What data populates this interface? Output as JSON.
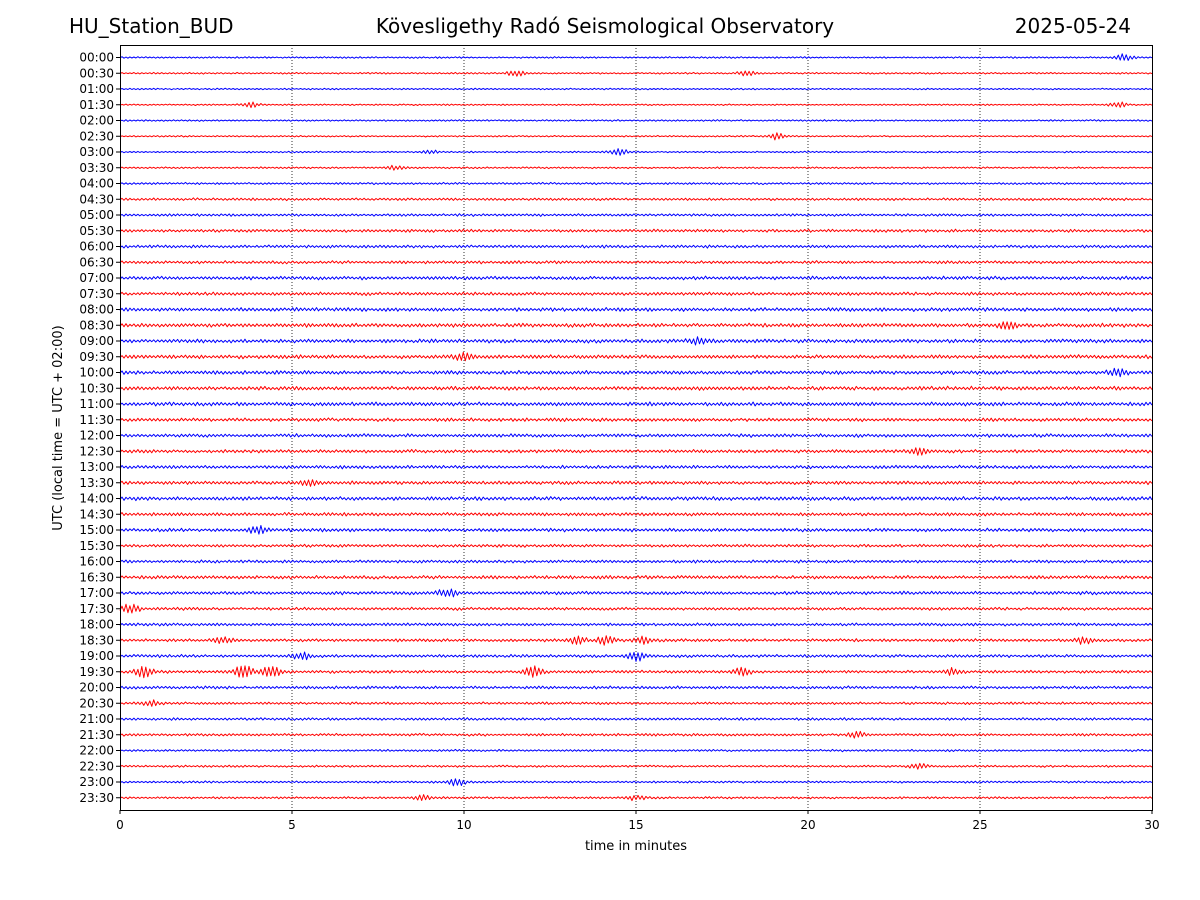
{
  "header": {
    "station": "HU_Station_BUD",
    "title": "Kövesligethy Radó Seismological Observatory",
    "date": "2025-05-24"
  },
  "chart_data": {
    "type": "line",
    "subtype": "helicorder",
    "xlabel": "time in minutes",
    "ylabel": "UTC (local time = UTC + 02:00)",
    "xlim": [
      0,
      30
    ],
    "xticks": [
      0,
      5,
      10,
      15,
      20,
      25,
      30
    ],
    "vertical_gridlines": [
      5,
      10,
      15,
      20,
      25
    ],
    "grid_style": "dotted",
    "row_labels": [
      "00:00",
      "00:30",
      "01:00",
      "01:30",
      "02:00",
      "02:30",
      "03:00",
      "03:30",
      "04:00",
      "04:30",
      "05:00",
      "05:30",
      "06:00",
      "06:30",
      "07:00",
      "07:30",
      "08:00",
      "08:30",
      "09:00",
      "09:30",
      "10:00",
      "10:30",
      "11:00",
      "11:30",
      "12:00",
      "12:30",
      "13:00",
      "13:30",
      "14:00",
      "14:30",
      "15:00",
      "15:30",
      "16:00",
      "16:30",
      "17:00",
      "17:30",
      "18:00",
      "18:30",
      "19:00",
      "19:30",
      "20:00",
      "20:30",
      "21:00",
      "21:30",
      "22:00",
      "22:30",
      "23:00",
      "23:30"
    ],
    "colors": {
      "even_rows": "#0000ff",
      "odd_rows": "#ff0000"
    },
    "noise_levels": [
      0.2,
      0.2,
      0.18,
      0.18,
      0.2,
      0.18,
      0.2,
      0.2,
      0.25,
      0.3,
      0.3,
      0.35,
      0.35,
      0.35,
      0.4,
      0.4,
      0.45,
      0.45,
      0.45,
      0.45,
      0.45,
      0.45,
      0.45,
      0.4,
      0.4,
      0.4,
      0.4,
      0.4,
      0.45,
      0.4,
      0.4,
      0.35,
      0.35,
      0.4,
      0.4,
      0.35,
      0.35,
      0.35,
      0.35,
      0.35,
      0.35,
      0.3,
      0.3,
      0.3,
      0.25,
      0.25,
      0.25,
      0.25
    ],
    "bursts": [
      {
        "row": 0,
        "t": 29.2,
        "amp": 1.0
      },
      {
        "row": 1,
        "t": 11.5,
        "amp": 0.8
      },
      {
        "row": 1,
        "t": 18.2,
        "amp": 0.7
      },
      {
        "row": 3,
        "t": 3.8,
        "amp": 0.7
      },
      {
        "row": 3,
        "t": 29.0,
        "amp": 0.8
      },
      {
        "row": 5,
        "t": 19.1,
        "amp": 0.9
      },
      {
        "row": 6,
        "t": 9.0,
        "amp": 0.6
      },
      {
        "row": 6,
        "t": 14.5,
        "amp": 1.1
      },
      {
        "row": 7,
        "t": 8.0,
        "amp": 0.6
      },
      {
        "row": 17,
        "t": 25.8,
        "amp": 1.0
      },
      {
        "row": 18,
        "t": 16.8,
        "amp": 1.0
      },
      {
        "row": 19,
        "t": 10.0,
        "amp": 1.0
      },
      {
        "row": 20,
        "t": 29.0,
        "amp": 0.9
      },
      {
        "row": 25,
        "t": 23.2,
        "amp": 0.9
      },
      {
        "row": 27,
        "t": 5.5,
        "amp": 0.8
      },
      {
        "row": 30,
        "t": 4.0,
        "amp": 1.0
      },
      {
        "row": 34,
        "t": 9.5,
        "amp": 1.1
      },
      {
        "row": 35,
        "t": 0.3,
        "amp": 1.3
      },
      {
        "row": 37,
        "t": 3.0,
        "amp": 0.8
      },
      {
        "row": 37,
        "t": 13.3,
        "amp": 1.0
      },
      {
        "row": 37,
        "t": 14.1,
        "amp": 1.0
      },
      {
        "row": 37,
        "t": 15.2,
        "amp": 1.0
      },
      {
        "row": 37,
        "t": 28.0,
        "amp": 0.9
      },
      {
        "row": 38,
        "t": 5.3,
        "amp": 1.0
      },
      {
        "row": 38,
        "t": 15.0,
        "amp": 1.3
      },
      {
        "row": 39,
        "t": 0.7,
        "amp": 1.5
      },
      {
        "row": 39,
        "t": 3.6,
        "amp": 2.2
      },
      {
        "row": 39,
        "t": 4.4,
        "amp": 1.7
      },
      {
        "row": 39,
        "t": 12.0,
        "amp": 1.4
      },
      {
        "row": 39,
        "t": 18.1,
        "amp": 1.0
      },
      {
        "row": 39,
        "t": 24.2,
        "amp": 0.9
      },
      {
        "row": 41,
        "t": 0.9,
        "amp": 0.8
      },
      {
        "row": 43,
        "t": 21.4,
        "amp": 0.8
      },
      {
        "row": 45,
        "t": 23.2,
        "amp": 0.8
      },
      {
        "row": 46,
        "t": 9.8,
        "amp": 1.0
      },
      {
        "row": 47,
        "t": 8.8,
        "amp": 0.7
      },
      {
        "row": 47,
        "t": 15.0,
        "amp": 0.7
      }
    ]
  }
}
